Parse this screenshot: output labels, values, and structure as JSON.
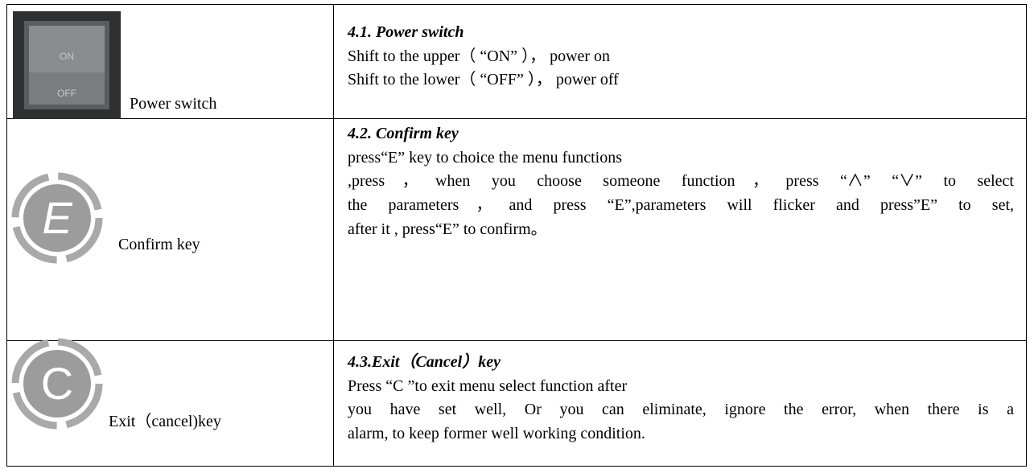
{
  "rows": [
    {
      "icon_texts": [
        "ON",
        "OFF"
      ],
      "label": "Power switch",
      "title": "4.1. Power switch",
      "lines": [
        "Shift to the upper（ “ON” ）， power on",
        "Shift to the lower（ “OFF” ）， power off"
      ]
    },
    {
      "icon_texts": [
        "E"
      ],
      "label": "Confirm key",
      "title": "4.2. Confirm key",
      "lines": [
        "press“E” key to choice the menu functions",
        ",press，when you choose someone function，press “∧” “∨” to select",
        "the parameters，and press “E”,parameters will flicker and press”E” to set,",
        "after it , press“E” to confirm。"
      ]
    },
    {
      "icon_texts": [
        "C"
      ],
      "label": "Exit（cancel)key",
      "title": "4.3.Exit（Cancel）key",
      "lines": [
        "Press “C ”to exit menu select function after",
        "you have set well, Or you can eliminate, ignore the error, when there is a",
        "alarm, to keep former well working condition."
      ]
    }
  ]
}
